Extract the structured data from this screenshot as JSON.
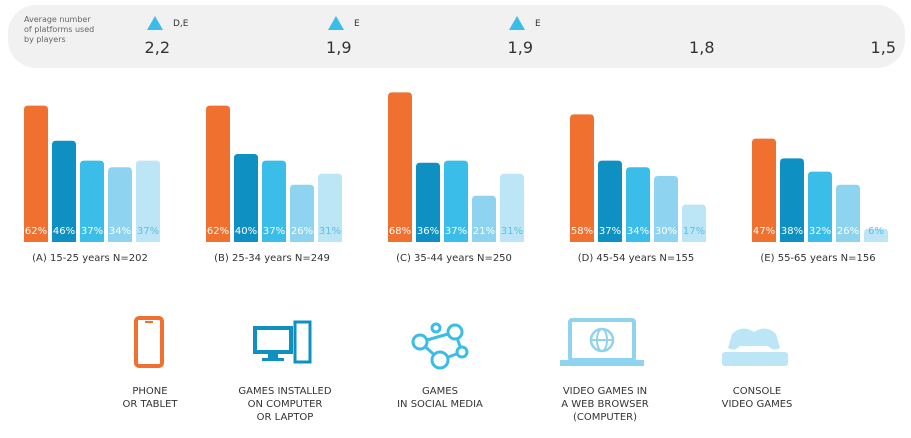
{
  "chart_data": {
    "type": "bar",
    "summary_label": "Average number\nof platforms used\nby players",
    "averages": [
      2.2,
      1.9,
      1.9,
      1.8,
      1.5
    ],
    "averages_labels": [
      "2,2",
      "1,9",
      "1,9",
      "1,8",
      "1,5"
    ],
    "significance": [
      "D,E",
      "E",
      "E",
      null,
      null
    ],
    "categories": [
      "(A) 15-25 years N=202",
      "(B) 25-34 years N=249",
      "(C) 35-44 years N=250",
      "(D) 45-54 years N=155",
      "(E) 55-65 years N=156"
    ],
    "series": [
      {
        "name": "PHONE\nOR TABLET",
        "color": "#f07030",
        "values": [
          62,
          62,
          68,
          58,
          47
        ],
        "value_labels": [
          "62%",
          "62%",
          "68%",
          "58%",
          "47%"
        ]
      },
      {
        "name": "GAMES INSTALLED\nON COMPUTER\nOR LAPTOP",
        "color": "#0e90c2",
        "values": [
          46,
          40,
          36,
          37,
          38
        ],
        "value_labels": [
          "46%",
          "40%",
          "36%",
          "37%",
          "38%"
        ]
      },
      {
        "name": "GAMES\nIN SOCIAL MEDIA",
        "color": "#3bbde9",
        "values": [
          37,
          37,
          37,
          34,
          32
        ],
        "value_labels": [
          "37%",
          "37%",
          "37%",
          "34%",
          "32%"
        ]
      },
      {
        "name": "VIDEO GAMES IN\nA WEB BROWSER\n(COMPUTER)",
        "color": "#8ed3ef",
        "values": [
          34,
          26,
          21,
          30,
          26
        ],
        "value_labels": [
          "34%",
          "26%",
          "21%",
          "30%",
          "26%"
        ]
      },
      {
        "name": "CONSOLE\nVIDEO GAMES",
        "color": "#bce5f6",
        "values": [
          37,
          31,
          31,
          17,
          6
        ],
        "value_labels": [
          "37%",
          "31%",
          "31%",
          "17%",
          "6%"
        ]
      }
    ]
  }
}
